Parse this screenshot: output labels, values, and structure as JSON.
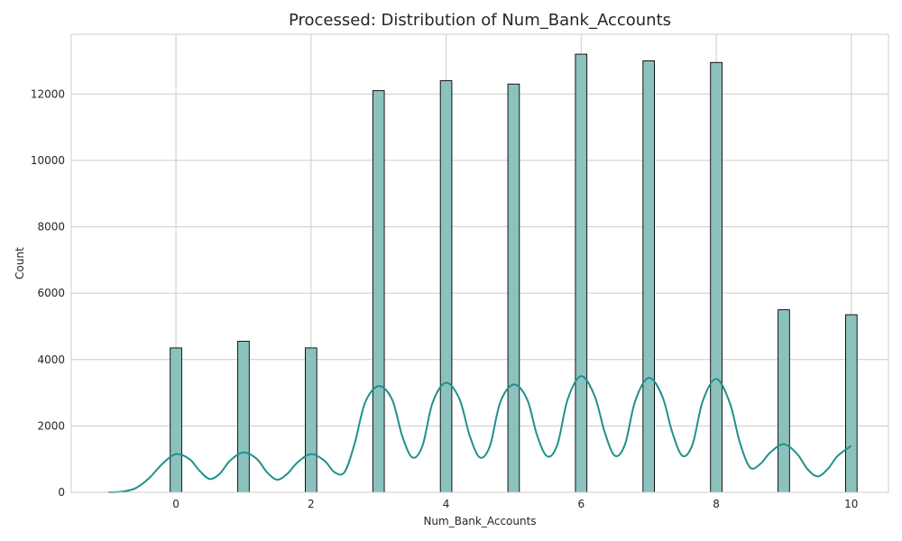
{
  "chart_data": {
    "type": "bar",
    "title": "Processed: Distribution of Num_Bank_Accounts",
    "xlabel": "Num_Bank_Accounts",
    "ylabel": "Count",
    "xlim": [
      -1.55,
      10.55
    ],
    "ylim": [
      0,
      13800
    ],
    "xticks": [
      0,
      2,
      4,
      6,
      8,
      10
    ],
    "yticks": [
      0,
      2000,
      4000,
      6000,
      8000,
      10000,
      12000
    ],
    "grid": true,
    "categories": [
      0,
      1,
      2,
      3,
      4,
      5,
      6,
      7,
      8,
      9,
      10
    ],
    "values": [
      4350,
      4550,
      4350,
      12100,
      12400,
      12300,
      13200,
      13000,
      12950,
      5500,
      5350
    ],
    "bar_color": "#8cc2bd",
    "kde_color": "#1f918c",
    "kde": {
      "x": [
        -1.0,
        -0.8,
        -0.6,
        -0.4,
        -0.2,
        0.0,
        0.2,
        0.35,
        0.5,
        0.65,
        0.8,
        1.0,
        1.2,
        1.35,
        1.5,
        1.65,
        1.8,
        2.0,
        2.2,
        2.35,
        2.5,
        2.65,
        2.8,
        3.0,
        3.2,
        3.35,
        3.5,
        3.65,
        3.8,
        4.0,
        4.2,
        4.35,
        4.5,
        4.65,
        4.8,
        5.0,
        5.2,
        5.35,
        5.5,
        5.65,
        5.8,
        6.0,
        6.2,
        6.35,
        6.5,
        6.65,
        6.8,
        7.0,
        7.2,
        7.35,
        7.5,
        7.65,
        7.8,
        8.0,
        8.2,
        8.35,
        8.5,
        8.65,
        8.8,
        9.0,
        9.2,
        9.35,
        9.5,
        9.65,
        9.8,
        10.0
      ],
      "y": [
        0,
        20,
        120,
        420,
        860,
        1150,
        1000,
        650,
        400,
        560,
        950,
        1200,
        1000,
        600,
        380,
        560,
        900,
        1150,
        950,
        600,
        620,
        1500,
        2700,
        3200,
        2800,
        1700,
        1050,
        1400,
        2700,
        3300,
        2800,
        1700,
        1050,
        1400,
        2700,
        3250,
        2800,
        1700,
        1080,
        1450,
        2800,
        3500,
        2900,
        1800,
        1100,
        1450,
        2750,
        3450,
        2900,
        1800,
        1100,
        1450,
        2750,
        3420,
        2700,
        1500,
        750,
        850,
        1200,
        1450,
        1150,
        700,
        480,
        700,
        1100,
        1400
      ]
    }
  }
}
